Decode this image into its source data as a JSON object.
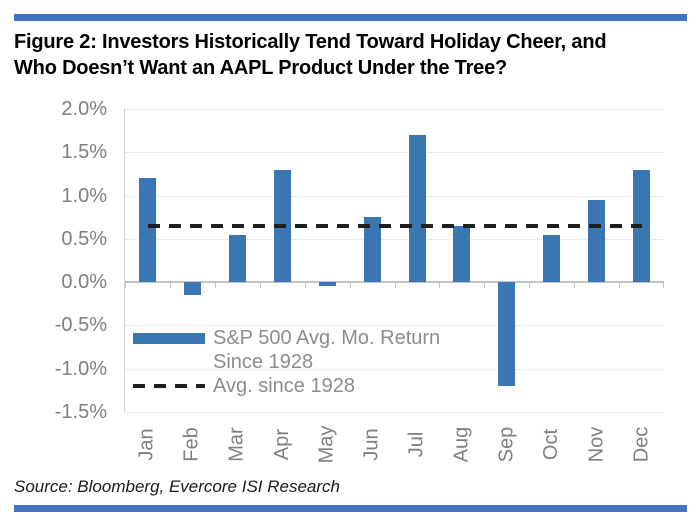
{
  "header": {
    "title_line1": "Figure 2: Investors Historically Tend Toward Holiday Cheer, and",
    "title_line2": "Who Doesn’t Want an AAPL Product Under the Tree?"
  },
  "legend": {
    "series_label": "S&P 500 Avg. Mo. Return Since 1928",
    "avg_label": "Avg. since 1928"
  },
  "source": {
    "text": "Source: Bloomberg, Evercore ISI Research"
  },
  "colors": {
    "bar": "#3a76b2",
    "rule": "#4472c4",
    "axis_text": "#7f7f7f",
    "legend_text": "#8c8c8c",
    "avg_line": "#1f1f1f",
    "gridline": "#dadada",
    "axis_line": "#c4c4c4"
  },
  "chart_data": {
    "type": "bar",
    "title": "Figure 2: Investors Historically Tend Toward Holiday Cheer, and Who Doesn’t Want an AAPL Product Under the Tree?",
    "categories": [
      "Jan",
      "Feb",
      "Mar",
      "Apr",
      "May",
      "Jun",
      "Jul",
      "Aug",
      "Sep",
      "Oct",
      "Nov",
      "Dec"
    ],
    "series": [
      {
        "name": "S&P 500 Avg. Mo. Return Since 1928",
        "values": [
          1.2,
          -0.15,
          0.55,
          1.3,
          -0.05,
          0.75,
          1.7,
          0.65,
          -1.2,
          0.55,
          0.95,
          1.3
        ]
      }
    ],
    "avg_line": {
      "name": "Avg. since 1928",
      "value": 0.65
    },
    "xlabel": "",
    "ylabel": "",
    "ylim": [
      -1.5,
      2.0
    ],
    "ytick_step": 0.5,
    "ytick_format": "percent-one-decimal",
    "grid": "horizontal-dotted",
    "legend_position": "inside-bottom-left"
  }
}
